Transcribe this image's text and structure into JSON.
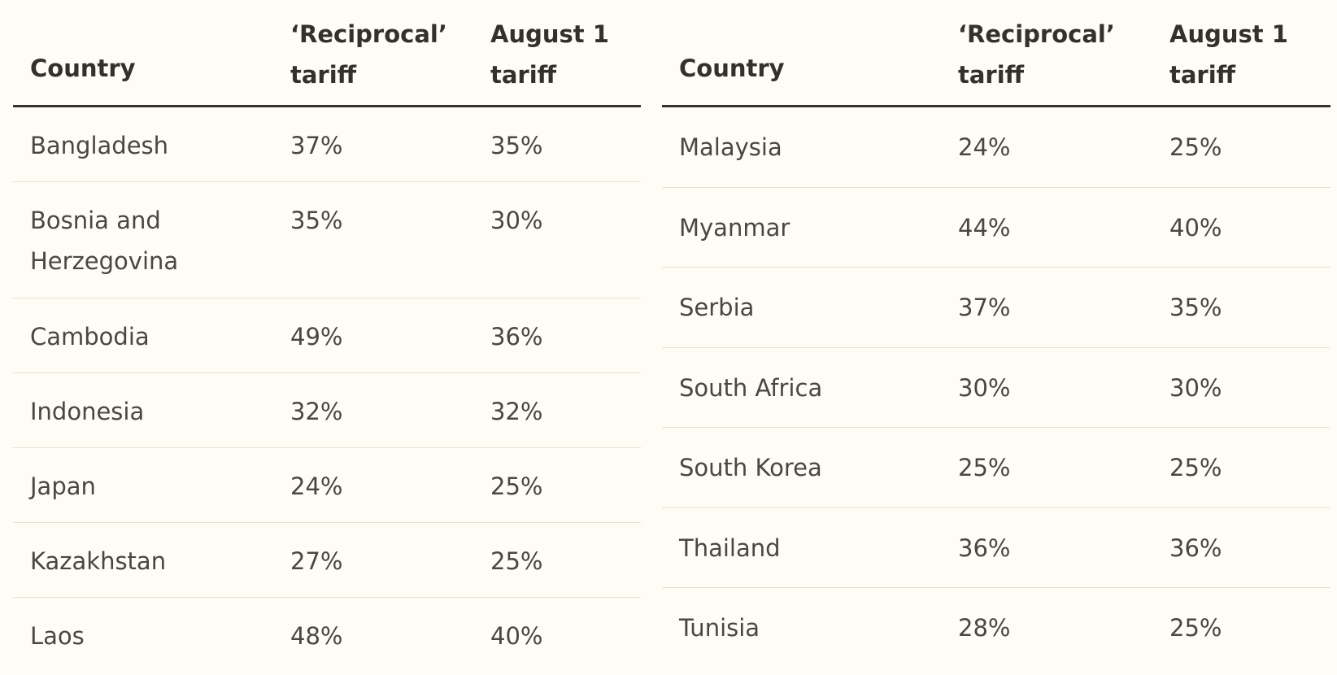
{
  "chart_data": {
    "type": "table",
    "tables": [
      {
        "columns": [
          "Country",
          "‘Reciprocal’\ntariff",
          "August 1\ntariff"
        ],
        "rows": [
          {
            "country": "Bangladesh",
            "reciprocal": "37%",
            "august1": "35%"
          },
          {
            "country": "Bosnia and\nHerzegovina",
            "reciprocal": "35%",
            "august1": "30%"
          },
          {
            "country": "Cambodia",
            "reciprocal": "49%",
            "august1": "36%"
          },
          {
            "country": "Indonesia",
            "reciprocal": "32%",
            "august1": "32%"
          },
          {
            "country": "Japan",
            "reciprocal": "24%",
            "august1": "25%"
          },
          {
            "country": "Kazakhstan",
            "reciprocal": "27%",
            "august1": "25%"
          },
          {
            "country": "Laos",
            "reciprocal": "48%",
            "august1": "40%"
          }
        ]
      },
      {
        "columns": [
          "Country",
          "‘Reciprocal’\ntariff",
          "August 1\ntariff"
        ],
        "rows": [
          {
            "country": "Malaysia",
            "reciprocal": "24%",
            "august1": "25%"
          },
          {
            "country": "Myanmar",
            "reciprocal": "44%",
            "august1": "40%"
          },
          {
            "country": "Serbia",
            "reciprocal": "37%",
            "august1": "35%"
          },
          {
            "country": "South Africa",
            "reciprocal": "30%",
            "august1": "30%"
          },
          {
            "country": "South Korea",
            "reciprocal": "25%",
            "august1": "25%"
          },
          {
            "country": "Thailand",
            "reciprocal": "36%",
            "august1": "36%"
          },
          {
            "country": "Tunisia",
            "reciprocal": "28%",
            "august1": "25%"
          }
        ]
      }
    ]
  },
  "colors": {
    "background": "#fffcf6",
    "text": "#33302e",
    "rule": "#33302e",
    "divider": "#e9e0d8"
  }
}
